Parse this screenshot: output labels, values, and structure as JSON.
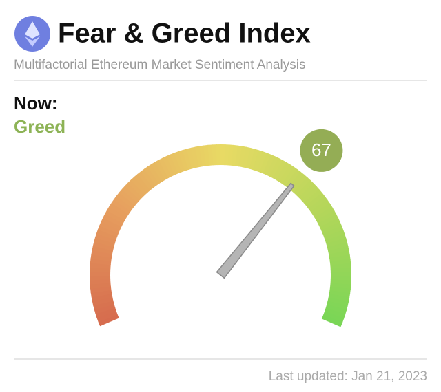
{
  "chart_data": {
    "type": "gauge",
    "title": "Fear & Greed Index",
    "subtitle": "Multifactorial Ethereum Market Sentiment Analysis",
    "now_label": "Now:",
    "status": "Greed",
    "status_color": "#8db356",
    "value": 67,
    "value_color": "#94ad55",
    "ylim": [
      0,
      100
    ],
    "footer": "Last updated: Jan 21, 2023"
  }
}
